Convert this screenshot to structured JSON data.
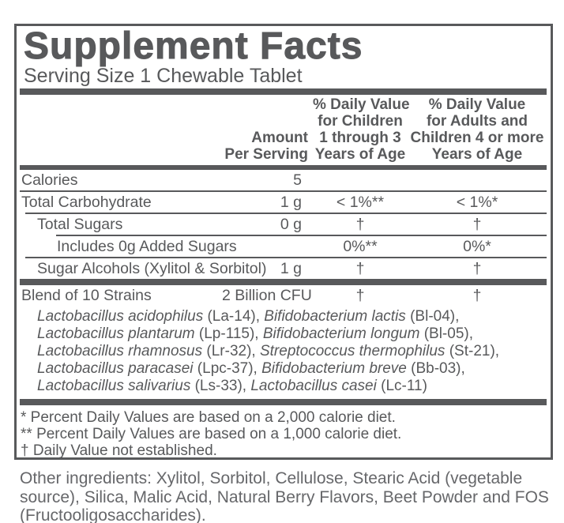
{
  "colors": {
    "ink": "#58595B",
    "ink_soft": "#66676A",
    "background": "#FFFFFF"
  },
  "panel": {
    "title": "Supplement Facts",
    "serving_size": "Serving Size 1 Chewable Tablet",
    "columns": {
      "amount_lines": [
        "Amount",
        "Per Serving"
      ],
      "dv_children_lines": [
        "% Daily Value",
        "for Children",
        "1 through 3",
        "Years of Age"
      ],
      "dv_adults_lines": [
        "% Daily Value",
        "for Adults and",
        "Children 4 or more",
        "Years of Age"
      ]
    },
    "rows": [
      {
        "label": "Calories",
        "amount": "5",
        "dv_children": "",
        "dv_adults": "",
        "indent": 0,
        "separator": null
      },
      {
        "label": "Total Carbohydrate",
        "amount": "1 g",
        "dv_children": "< 1%**",
        "dv_adults": "< 1%*",
        "indent": 0,
        "separator": "full"
      },
      {
        "label": "Total Sugars",
        "amount": "0 g",
        "dv_children": "†",
        "dv_adults": "†",
        "indent": 1,
        "separator": "indent1"
      },
      {
        "label": "Includes 0g Added Sugars",
        "amount": "",
        "dv_children": "0%**",
        "dv_adults": "0%*",
        "indent": 2,
        "separator": "indent2"
      },
      {
        "label": "Sugar Alcohols (Xylitol & Sorbitol)",
        "amount": "1 g",
        "dv_children": "†",
        "dv_adults": "†",
        "indent": 1,
        "separator": "indent1"
      }
    ],
    "blend": {
      "label": "Blend of 10 Strains",
      "amount": "2 Billion CFU",
      "dv_children": "†",
      "dv_adults": "†",
      "strain_lines": [
        [
          {
            "name": "Lactobacillus acidophilus",
            "code": "(La-14),"
          },
          {
            "name": "Bifidobacterium lactis",
            "code": "(Bl-04),"
          }
        ],
        [
          {
            "name": "Lactobacillus plantarum",
            "code": "(Lp-115),"
          },
          {
            "name": "Bifidobacterium longum",
            "code": "(Bl-05),"
          }
        ],
        [
          {
            "name": "Lactobacillus rhamnosus",
            "code": "(Lr-32),"
          },
          {
            "name": "Streptococcus thermophilus",
            "code": "(St-21),"
          }
        ],
        [
          {
            "name": "Lactobacillus paracasei",
            "code": "(Lpc-37),"
          },
          {
            "name": "Bifidobacterium breve",
            "code": "(Bb-03),"
          }
        ],
        [
          {
            "name": "Lactobacillus salivarius",
            "code": "(Ls-33),"
          },
          {
            "name": "Lactobacillus casei",
            "code": "(Lc-11)"
          }
        ]
      ]
    },
    "footnotes": [
      "* Percent Daily Values are based on a 2,000 calorie diet.",
      "** Percent Daily Values are based on a 1,000 calorie diet.",
      "† Daily Value not established."
    ]
  },
  "other_ingredients": "Other ingredients: Xylitol, Sorbitol, Cellulose, Stearic Acid (vegetable source), Silica, Malic Acid, Natural Berry Flavors, Beet Powder and FOS (Fructooligosaccharides)."
}
